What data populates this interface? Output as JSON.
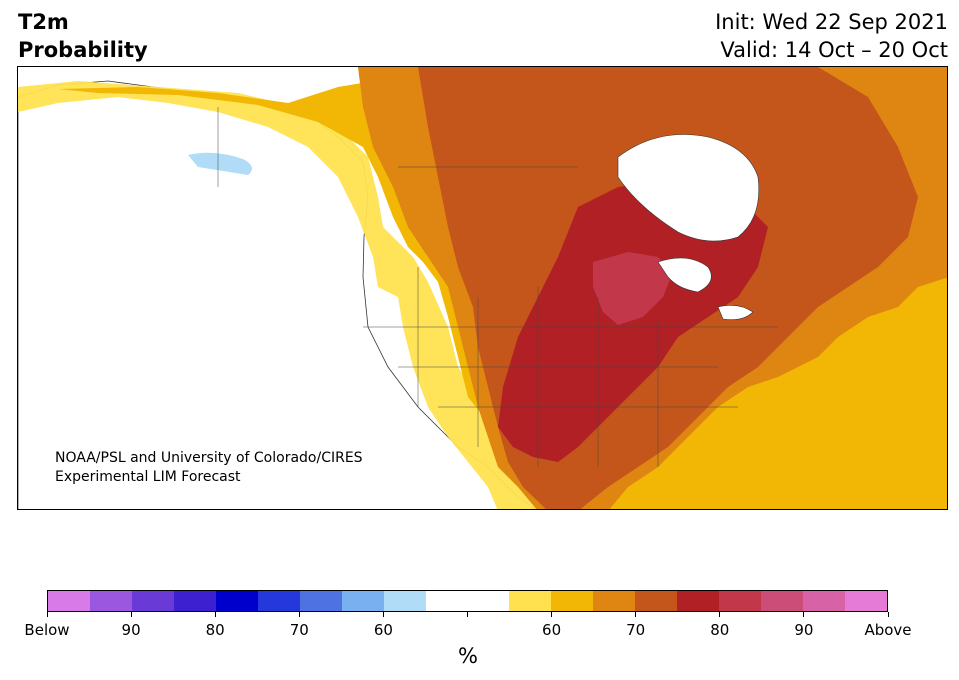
{
  "header": {
    "title_line1": "T2m",
    "title_line2": "Probability",
    "init": "Init: Wed 22 Sep 2021",
    "valid": "Valid: 14 Oct – 20 Oct"
  },
  "map": {
    "credit_line1": "NOAA/PSL and University of Colorado/CIRES",
    "credit_line2": "Experimental LIM Forecast"
  },
  "colorbar": {
    "colors": [
      "#d87be8",
      "#9b57e0",
      "#6a3ad6",
      "#3d20d0",
      "#0000cd",
      "#2538dc",
      "#4e72e2",
      "#79b0f0",
      "#b0dcf8",
      "#ffffff",
      "#ffffff",
      "#ffe14f",
      "#f2b705",
      "#de8512",
      "#c4561c",
      "#b02025",
      "#c2384a",
      "#cc4e78",
      "#d762a6",
      "#e67bd7"
    ],
    "labels": [
      "Below",
      "90",
      "80",
      "70",
      "60",
      "",
      "60",
      "70",
      "80",
      "90",
      "Above"
    ],
    "units": "%"
  }
}
